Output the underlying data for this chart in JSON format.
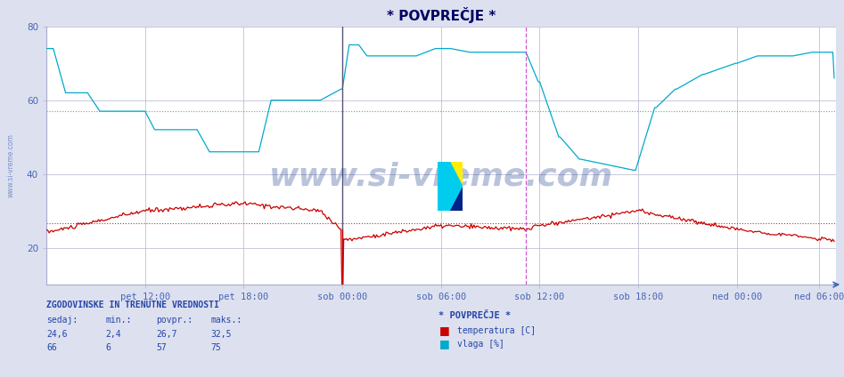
{
  "title": "* POVPREČJE *",
  "bg_color": "#dde0ee",
  "plot_bg_color": "#ffffff",
  "grid_color": "#c0c0d8",
  "x_min": 0,
  "x_max": 576,
  "y_min": 10,
  "y_max": 80,
  "yticks": [
    20,
    40,
    60,
    80
  ],
  "xlabel_color": "#4466bb",
  "title_color": "#000066",
  "watermark": "www.si-vreme.com",
  "watermark_color": "#1a3a8a",
  "watermark_alpha": 0.3,
  "left_label": "www.si-vreme.com",
  "temp_color": "#cc0000",
  "hum_color": "#00aacc",
  "temp_avg": 26.7,
  "hum_avg": 57,
  "temp_min": 2.4,
  "temp_max": 32.5,
  "hum_min": 6,
  "hum_max": 75,
  "temp_current": 24.6,
  "hum_current": 66,
  "x_tick_labels": [
    "pet 12:00",
    "pet 18:00",
    "sob 00:00",
    "sob 06:00",
    "sob 12:00",
    "sob 18:00",
    "ned 00:00",
    "ned 06:00"
  ],
  "x_tick_positions": [
    72,
    144,
    216,
    288,
    360,
    432,
    504,
    564
  ],
  "vertical_line1_x": 216,
  "vertical_line2_x": 350,
  "legend_label1": "temperatura [C]",
  "legend_label2": "vlaga [%]",
  "info_title": "ZGODOVINSKE IN TRENUTNE VREDNOSTI",
  "info_cols": [
    "sedaj:",
    "min.:",
    "povpr.:",
    "maks.:"
  ],
  "info_vals_temp": [
    "24,6",
    "2,4",
    "26,7",
    "32,5"
  ],
  "info_vals_hum": [
    "66",
    "6",
    "57",
    "75"
  ]
}
